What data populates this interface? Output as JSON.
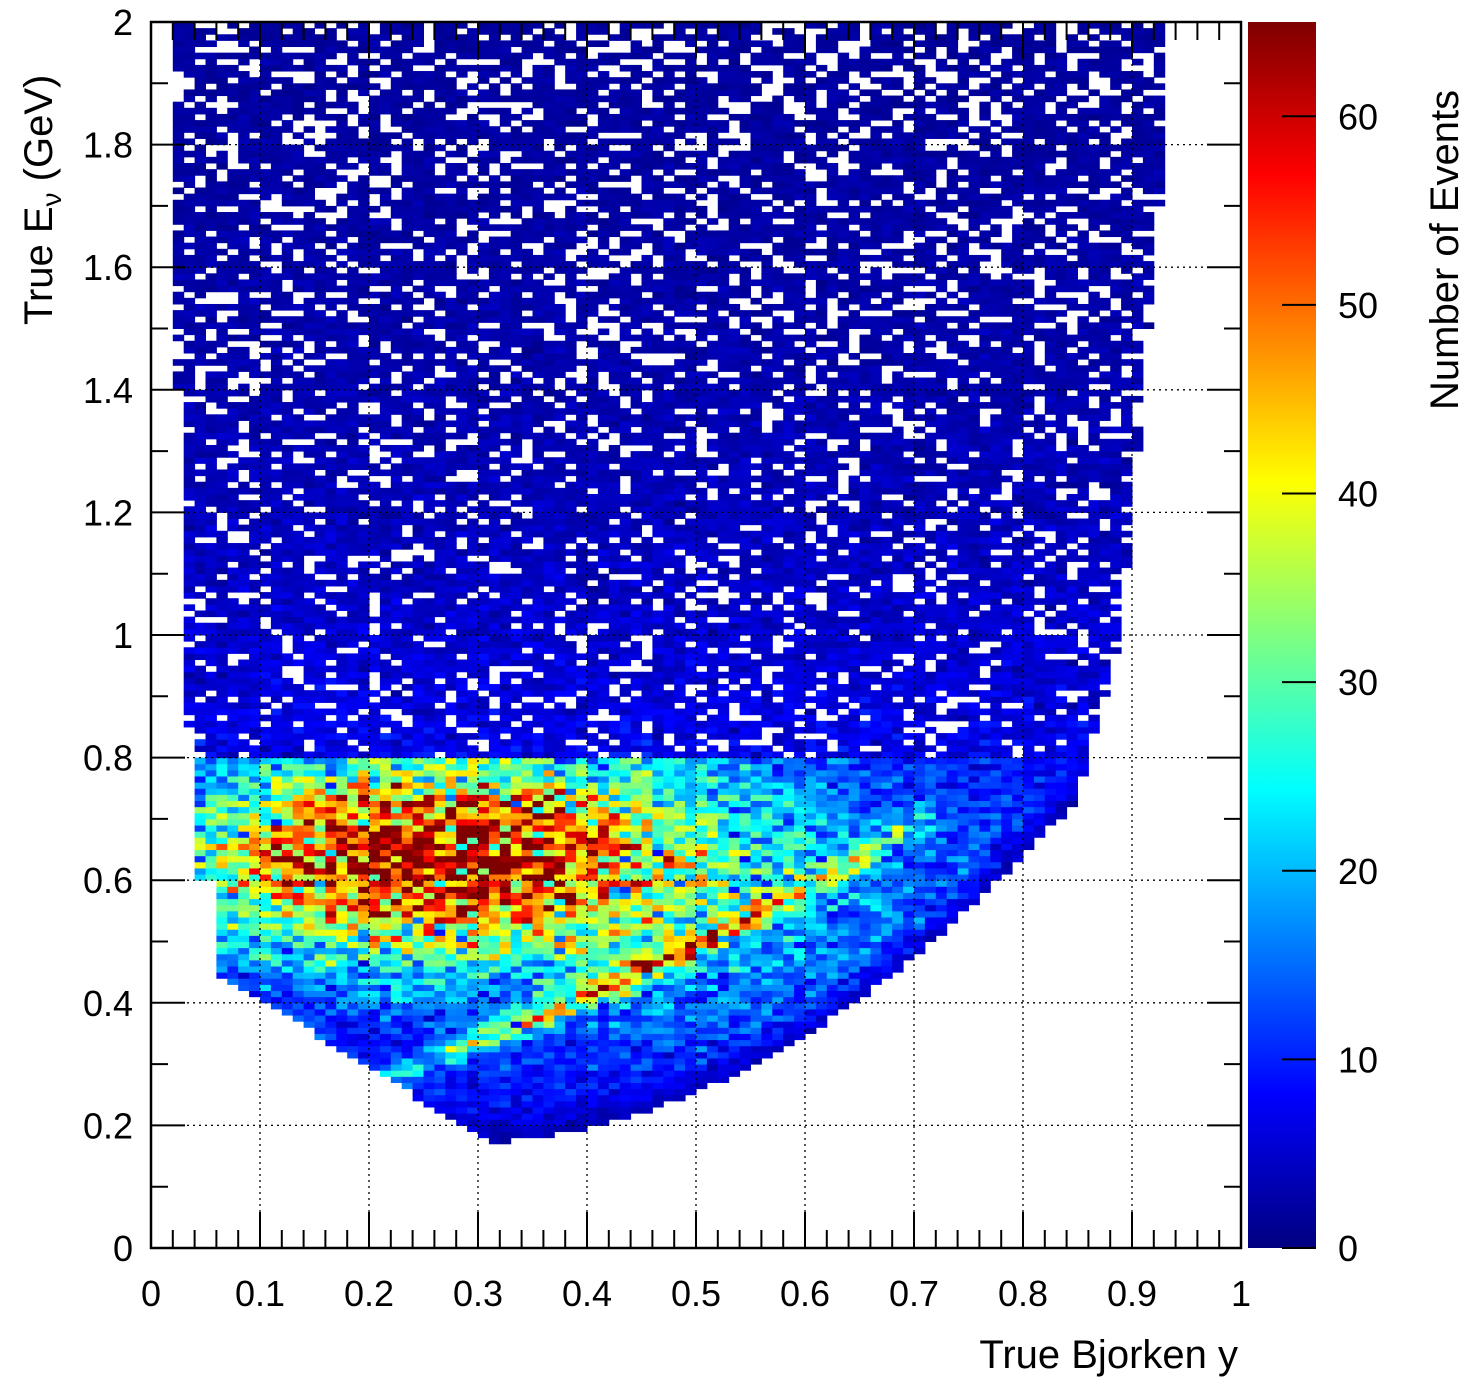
{
  "chart_data": {
    "type": "heatmap",
    "title": "",
    "xlabel": "True Bjorken y",
    "ylabel": {
      "prefix": "True E",
      "subscript": "ν",
      "suffix": " (GeV)"
    },
    "zlabel": "Number of Events",
    "xlim": [
      0,
      1
    ],
    "ylim": [
      0,
      2
    ],
    "zlim": [
      0,
      65
    ],
    "x_ticks": [
      "0",
      "0.1",
      "0.2",
      "0.3",
      "0.4",
      "0.5",
      "0.6",
      "0.7",
      "0.8",
      "0.9",
      "1"
    ],
    "y_ticks": [
      "0",
      "0.2",
      "0.4",
      "0.6",
      "0.8",
      "1",
      "1.2",
      "1.4",
      "1.6",
      "1.8",
      "2"
    ],
    "z_ticks": [
      "0",
      "10",
      "20",
      "30",
      "40",
      "50",
      "60"
    ],
    "grid": true,
    "colormap": [
      "#00007f",
      "#0000ff",
      "#007fff",
      "#00ffff",
      "#7fff7f",
      "#ffff00",
      "#ff7f00",
      "#ff0000",
      "#7f0000"
    ],
    "bins": {
      "nx": 100,
      "ny": 200
    },
    "features": {
      "kinematic_boundary": "events occupy y from about 0.02 to 0.93 and E from about 0.17 to 2 GeV, bounded below by a curved edge",
      "main_peak": {
        "y_range": [
          0.05,
          0.6
        ],
        "E_range": [
          0.5,
          0.8
        ],
        "max_counts": 62
      },
      "diagonal_band": {
        "from": [
          0.2,
          0.27
        ],
        "to": [
          0.7,
          0.68
        ],
        "max_counts": 55
      },
      "high_energy_tail": {
        "E_range": [
          0.8,
          2.0
        ],
        "typical_counts": [
          0,
          6
        ]
      }
    }
  }
}
